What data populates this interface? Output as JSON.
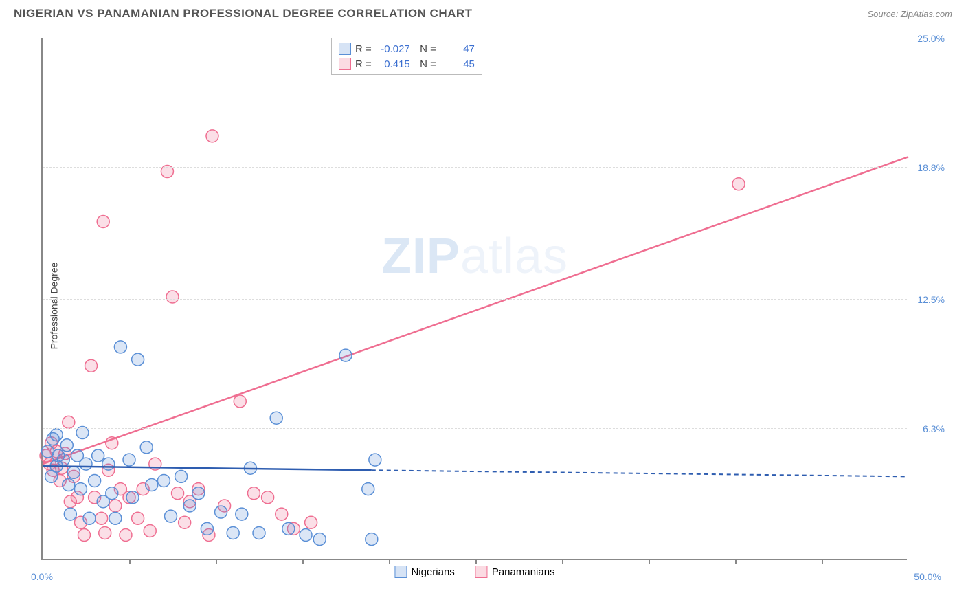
{
  "header": {
    "title": "NIGERIAN VS PANAMANIAN PROFESSIONAL DEGREE CORRELATION CHART",
    "source": "Source: ZipAtlas.com"
  },
  "watermark": {
    "zip": "ZIP",
    "atlas": "atlas"
  },
  "chart": {
    "type": "scatter",
    "ylabel": "Professional Degree",
    "xlim": [
      0,
      50
    ],
    "ylim": [
      0,
      25
    ],
    "x_axis_min_label": "0.0%",
    "x_axis_max_label": "50.0%",
    "xtick_positions": [
      5,
      10,
      15,
      20,
      25,
      30,
      35,
      40,
      45
    ],
    "y_gridlines": [
      {
        "value": 6.3,
        "label": "6.3%"
      },
      {
        "value": 12.5,
        "label": "12.5%"
      },
      {
        "value": 18.8,
        "label": "18.8%"
      },
      {
        "value": 25.0,
        "label": "25.0%"
      }
    ],
    "background_color": "#ffffff",
    "grid_color": "#dddddd",
    "axis_color": "#888888",
    "tick_label_color": "#5a8fd6",
    "marker_radius": 9,
    "marker_stroke_width": 1.5,
    "marker_fill_opacity": 0.22,
    "series": {
      "nigerians": {
        "label": "Nigerians",
        "marker_color": "#5a8fd6",
        "line_color": "#2e5db0",
        "R": "-0.027",
        "N": "47",
        "trend": {
          "x1": 0,
          "y1": 4.5,
          "x2": 19,
          "y2": 4.3,
          "dash": false
        },
        "trend_ext": {
          "x1": 19,
          "y1": 4.3,
          "x2": 50,
          "y2": 4.0,
          "dash": true
        },
        "points": [
          [
            0.3,
            5.2
          ],
          [
            0.5,
            4.0
          ],
          [
            0.6,
            5.8
          ],
          [
            0.8,
            4.5
          ],
          [
            0.8,
            6.0
          ],
          [
            0.9,
            5.0
          ],
          [
            1.2,
            4.8
          ],
          [
            1.4,
            5.5
          ],
          [
            1.5,
            3.6
          ],
          [
            1.6,
            2.2
          ],
          [
            1.8,
            4.2
          ],
          [
            2.0,
            5.0
          ],
          [
            2.2,
            3.4
          ],
          [
            2.3,
            6.1
          ],
          [
            2.5,
            4.6
          ],
          [
            2.7,
            2.0
          ],
          [
            3.0,
            3.8
          ],
          [
            3.2,
            5.0
          ],
          [
            3.5,
            2.8
          ],
          [
            3.8,
            4.6
          ],
          [
            4.0,
            3.2
          ],
          [
            4.2,
            2.0
          ],
          [
            4.5,
            10.2
          ],
          [
            5.0,
            4.8
          ],
          [
            5.2,
            3.0
          ],
          [
            5.5,
            9.6
          ],
          [
            6.0,
            5.4
          ],
          [
            6.3,
            3.6
          ],
          [
            7.0,
            3.8
          ],
          [
            7.4,
            2.1
          ],
          [
            8.0,
            4.0
          ],
          [
            8.5,
            2.6
          ],
          [
            9.0,
            3.2
          ],
          [
            9.5,
            1.5
          ],
          [
            10.3,
            2.3
          ],
          [
            11.0,
            1.3
          ],
          [
            11.5,
            2.2
          ],
          [
            12.0,
            4.4
          ],
          [
            12.5,
            1.3
          ],
          [
            13.5,
            6.8
          ],
          [
            14.2,
            1.5
          ],
          [
            15.2,
            1.2
          ],
          [
            16.0,
            1.0
          ],
          [
            17.5,
            9.8
          ],
          [
            18.8,
            3.4
          ],
          [
            19.0,
            1.0
          ],
          [
            19.2,
            4.8
          ]
        ]
      },
      "panamanians": {
        "label": "Panamanians",
        "marker_color": "#ef6e91",
        "line_color": "#ef6e91",
        "R": "0.415",
        "N": "45",
        "trend": {
          "x1": 0,
          "y1": 4.6,
          "x2": 50,
          "y2": 19.3,
          "dash": false
        },
        "points": [
          [
            0.2,
            5.0
          ],
          [
            0.4,
            4.6
          ],
          [
            0.5,
            5.6
          ],
          [
            0.6,
            4.3
          ],
          [
            0.8,
            5.2
          ],
          [
            1.0,
            3.8
          ],
          [
            1.1,
            4.4
          ],
          [
            1.3,
            5.1
          ],
          [
            1.5,
            6.6
          ],
          [
            1.6,
            2.8
          ],
          [
            1.8,
            4.0
          ],
          [
            2.0,
            3.0
          ],
          [
            2.2,
            1.8
          ],
          [
            2.4,
            1.2
          ],
          [
            2.8,
            9.3
          ],
          [
            3.0,
            3.0
          ],
          [
            3.4,
            2.0
          ],
          [
            3.5,
            16.2
          ],
          [
            3.6,
            1.3
          ],
          [
            3.8,
            4.3
          ],
          [
            4.0,
            5.6
          ],
          [
            4.2,
            2.6
          ],
          [
            4.5,
            3.4
          ],
          [
            4.8,
            1.2
          ],
          [
            5.0,
            3.0
          ],
          [
            5.5,
            2.0
          ],
          [
            5.8,
            3.4
          ],
          [
            6.2,
            1.4
          ],
          [
            6.5,
            4.6
          ],
          [
            7.2,
            18.6
          ],
          [
            7.5,
            12.6
          ],
          [
            7.8,
            3.2
          ],
          [
            8.2,
            1.8
          ],
          [
            8.5,
            2.8
          ],
          [
            9.0,
            3.4
          ],
          [
            9.6,
            1.2
          ],
          [
            9.8,
            20.3
          ],
          [
            10.5,
            2.6
          ],
          [
            11.4,
            7.6
          ],
          [
            12.2,
            3.2
          ],
          [
            13.0,
            3.0
          ],
          [
            13.8,
            2.2
          ],
          [
            14.5,
            1.5
          ],
          [
            15.5,
            1.8
          ],
          [
            40.2,
            18.0
          ]
        ]
      }
    },
    "legend_bottom": [
      {
        "key": "nigerians",
        "label": "Nigerians"
      },
      {
        "key": "panamanians",
        "label": "Panamanians"
      }
    ]
  }
}
